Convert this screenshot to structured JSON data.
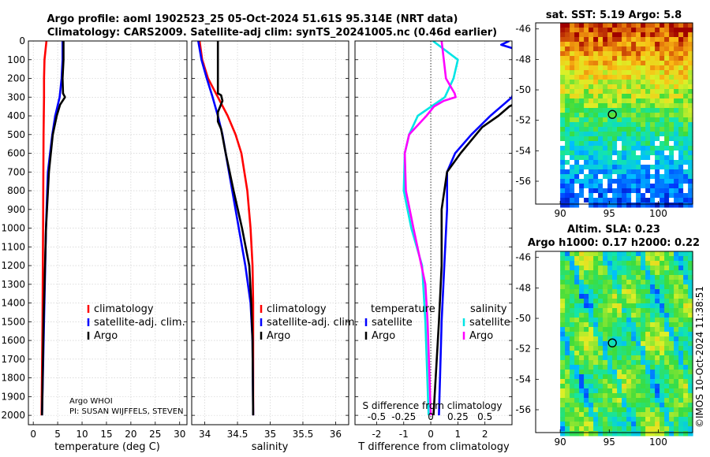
{
  "title": {
    "line1": "Argo profile: aoml 1902523_25 05-Oct-2024 51.61S 95.314E (NRT data)",
    "line2": "Climatology: CARS2009. Satellite-adj clim: synTS_20241005.nc (0.46d earlier)"
  },
  "colors": {
    "climatology": "#ff0000",
    "satellite": "#0000ff",
    "argo": "#000000",
    "sat_s": "#00e5e5",
    "clim_s": "#ff00ff"
  },
  "depth_ticks": [
    "0",
    "100",
    "200",
    "300",
    "400",
    "500",
    "600",
    "700",
    "800",
    "900",
    "1000",
    "1100",
    "1200",
    "1300",
    "1400",
    "1500",
    "1600",
    "1700",
    "1800",
    "1900",
    "2000"
  ],
  "chart_data": [
    {
      "type": "line",
      "name": "temperature",
      "xlabel": "temperature (deg C)",
      "xlim": [
        -1,
        31.5
      ],
      "ylim": [
        0,
        2050
      ],
      "xticks": [
        0,
        5,
        10,
        15,
        20,
        25,
        30
      ],
      "legend": [
        "climatology",
        "satellite-adj. clim.",
        "Argo"
      ],
      "series": [
        {
          "name": "climatology",
          "depth": [
            0,
            100,
            200,
            300,
            500,
            1000,
            1500,
            2000
          ],
          "values": [
            2.7,
            2.3,
            2.2,
            2.2,
            2.1,
            2.0,
            1.9,
            1.7
          ]
        },
        {
          "name": "satellite-adj. clim.",
          "depth": [
            0,
            100,
            200,
            300,
            400,
            500,
            700,
            1000,
            1500,
            2000
          ],
          "values": [
            6.0,
            6.0,
            5.8,
            5.4,
            4.5,
            3.9,
            3.0,
            2.6,
            2.2,
            1.8
          ]
        },
        {
          "name": "Argo",
          "depth": [
            0,
            100,
            200,
            280,
            300,
            340,
            400,
            500,
            700,
            1000,
            1500,
            2000
          ],
          "values": [
            6.2,
            6.2,
            6.0,
            6.1,
            6.5,
            5.5,
            4.8,
            4.0,
            3.2,
            2.6,
            2.1,
            1.8
          ]
        }
      ],
      "notes": [
        "Argo WHOI",
        "PI: SUSAN WIJFFELS, STEVEN"
      ]
    },
    {
      "type": "line",
      "name": "salinity",
      "xlabel": "salinity",
      "xlim": [
        33.8,
        36.2
      ],
      "ylim": [
        0,
        2050
      ],
      "xticks": [
        "34",
        "34.5",
        "35",
        "35.5",
        "36"
      ],
      "legend": [
        "climatology",
        "satellite-adj. clim.",
        "Argo"
      ],
      "series": [
        {
          "name": "climatology",
          "depth": [
            0,
            100,
            200,
            300,
            400,
            500,
            600,
            800,
            1000,
            1200,
            1400,
            1600,
            2000
          ],
          "values": [
            33.92,
            33.96,
            34.05,
            34.2,
            34.35,
            34.47,
            34.56,
            34.65,
            34.7,
            34.73,
            34.74,
            34.74,
            34.74
          ]
        },
        {
          "name": "satellite-adj. clim.",
          "depth": [
            0,
            100,
            200,
            300,
            400,
            500,
            600,
            800,
            1000,
            1200,
            1400,
            1600,
            2000
          ],
          "values": [
            33.9,
            33.95,
            34.03,
            34.12,
            34.2,
            34.27,
            34.32,
            34.42,
            34.52,
            34.62,
            34.7,
            34.73,
            34.74
          ]
        },
        {
          "name": "Argo",
          "depth": [
            0,
            280,
            290,
            320,
            380,
            430,
            470,
            600,
            800,
            1000,
            1200,
            1400,
            1600,
            2000
          ],
          "values": [
            34.2,
            34.2,
            34.25,
            34.27,
            34.2,
            34.2,
            34.25,
            34.32,
            34.44,
            34.57,
            34.68,
            34.71,
            34.73,
            34.74
          ]
        }
      ]
    },
    {
      "type": "line",
      "name": "difference",
      "xlabel": "T difference from climatology",
      "toplabel": "S difference from climatology",
      "xlim": [
        -2.8,
        3.0
      ],
      "ylim": [
        0,
        2050
      ],
      "xticks": [
        "-2",
        "-1",
        "0",
        "1",
        "2"
      ],
      "sticks": [
        "-0.5",
        "-0.25",
        "0",
        "0.25",
        "0.5"
      ],
      "legend_left_title": "temperature",
      "legend_right_title": "salinity",
      "legend_left": [
        "satellite",
        "Argo"
      ],
      "legend_right": [
        "satellite",
        "Argo"
      ],
      "series": [
        {
          "name": "T satellite",
          "depth": [
            0,
            20,
            60,
            150,
            300,
            400,
            500,
            600,
            700,
            900,
            1200,
            1500,
            2000
          ],
          "values": [
            2.9,
            2.6,
            3.5,
            3.3,
            3.0,
            2.2,
            1.5,
            0.9,
            0.6,
            0.6,
            0.5,
            0.4,
            0.3
          ]
        },
        {
          "name": "T Argo",
          "depth": [
            0,
            300,
            350,
            400,
            460,
            600,
            700,
            900,
            1200,
            1500,
            2000
          ],
          "values": [
            3.6,
            3.6,
            2.9,
            2.5,
            1.9,
            1.1,
            0.6,
            0.4,
            0.4,
            0.3,
            0.1
          ]
        },
        {
          "name": "S satellite",
          "depth": [
            0,
            100,
            200,
            300,
            400,
            500,
            600,
            800,
            1000,
            1200,
            1500,
            2000
          ],
          "values": [
            0.02,
            0.25,
            0.21,
            0.13,
            -0.12,
            -0.2,
            -0.24,
            -0.25,
            -0.18,
            -0.08,
            -0.05,
            -0.02
          ]
        },
        {
          "name": "S Argo",
          "depth": [
            0,
            200,
            280,
            300,
            320,
            350,
            400,
            500,
            600,
            800,
            1000,
            1300,
            1500,
            2000
          ],
          "values": [
            0.1,
            0.14,
            0.22,
            0.23,
            0.12,
            0.03,
            -0.04,
            -0.2,
            -0.24,
            -0.23,
            -0.16,
            -0.05,
            -0.03,
            0
          ]
        }
      ]
    },
    {
      "type": "heatmap",
      "name": "sst-map",
      "title": "sat. SST: 5.19 Argo: 5.8",
      "xticks": [
        "90",
        "95",
        "100"
      ],
      "yticks": [
        "-46",
        "-48",
        "-50",
        "-52",
        "-54",
        "-56"
      ],
      "xlim": [
        87.5,
        103.5
      ],
      "ylim": [
        -57.5,
        -45.6
      ],
      "marker": {
        "lon": 95.314,
        "lat": -51.61
      }
    },
    {
      "type": "heatmap",
      "name": "sla-map",
      "title1": "Altim. SLA: 0.23",
      "title2": "Argo h1000: 0.17 h2000: 0.22",
      "xticks": [
        "90",
        "95",
        "100"
      ],
      "yticks": [
        "-46",
        "-48",
        "-50",
        "-52",
        "-54",
        "-56"
      ],
      "xlim": [
        87.5,
        103.5
      ],
      "ylim": [
        -57.5,
        -45.6
      ],
      "marker": {
        "lon": 95.314,
        "lat": -51.61
      }
    }
  ],
  "watermark": "©IMOS 10-Oct-2024 11:38:51"
}
